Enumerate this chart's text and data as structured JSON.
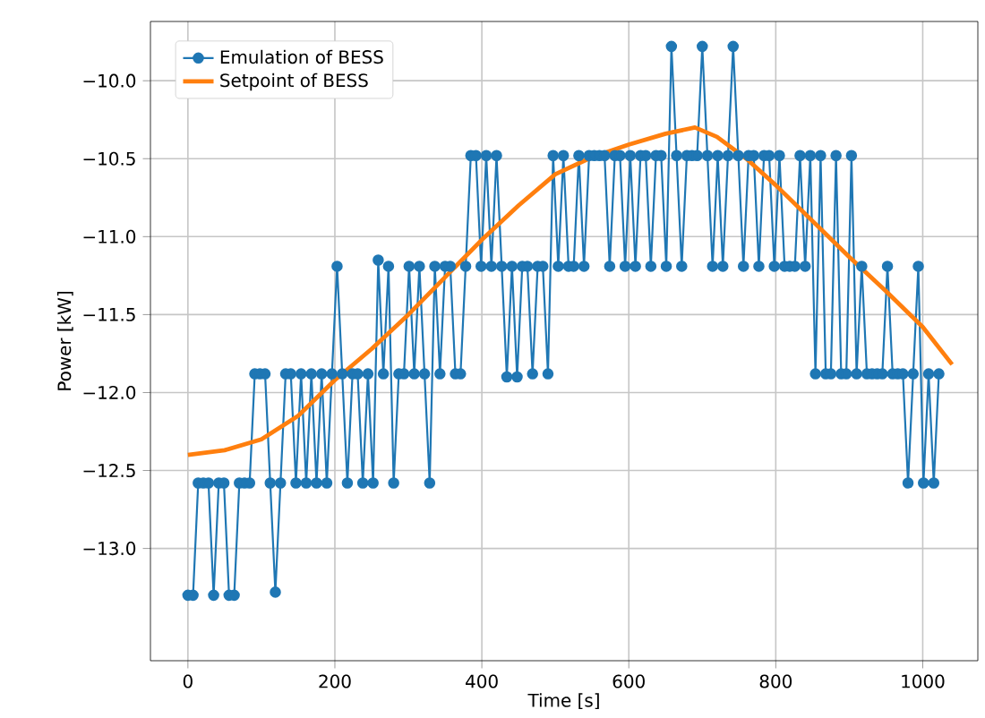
{
  "chart_data": {
    "type": "line",
    "xlabel": "Time [s]",
    "ylabel": "Power [kW]",
    "xlim": [
      -51,
      1075
    ],
    "ylim": [
      -13.72,
      -9.62
    ],
    "xticks": [
      0,
      200,
      400,
      600,
      800,
      1000
    ],
    "yticks": [
      {
        "value": -13.0,
        "label": "−13.0"
      },
      {
        "value": -12.5,
        "label": "−12.5"
      },
      {
        "value": -12.0,
        "label": "−12.0"
      },
      {
        "value": -11.5,
        "label": "−11.5"
      },
      {
        "value": -11.0,
        "label": "−11.0"
      },
      {
        "value": -10.5,
        "label": "−10.5"
      },
      {
        "value": -10.0,
        "label": "−10.0"
      }
    ],
    "grid": true,
    "legend": "top left",
    "series": [
      {
        "name": "Emulation of BESS",
        "color": "#1f77b4",
        "marker": "circle",
        "x": [
          0,
          7,
          14,
          21,
          28,
          35,
          42,
          49,
          56,
          63,
          70,
          77,
          84,
          91,
          98,
          105,
          112,
          119,
          126,
          133,
          140,
          147,
          154,
          161,
          168,
          175,
          182,
          189,
          196,
          203,
          210,
          217,
          224,
          231,
          238,
          245,
          252,
          259,
          266,
          273,
          280,
          287,
          294,
          301,
          308,
          315,
          322,
          329,
          336,
          343,
          350,
          357,
          364,
          371,
          378,
          385,
          392,
          399,
          406,
          413,
          420,
          427,
          434,
          441,
          448,
          455,
          462,
          469,
          476,
          483,
          490,
          497,
          504,
          511,
          518,
          525,
          532,
          539,
          546,
          553,
          560,
          567,
          574,
          581,
          588,
          595,
          602,
          609,
          616,
          623,
          630,
          637,
          644,
          651,
          658,
          665,
          672,
          679,
          686,
          693,
          700,
          707,
          714,
          721,
          728,
          735,
          742,
          749,
          756,
          763,
          770,
          777,
          784,
          791,
          798,
          805,
          812,
          819,
          826,
          833,
          840,
          847,
          854,
          861,
          868,
          875,
          882,
          889,
          896,
          903,
          910,
          917,
          924,
          931,
          938,
          945,
          952,
          959,
          966,
          973,
          980,
          987,
          994,
          1001,
          1008,
          1015,
          1022
        ],
        "values": [
          -13.3,
          -13.3,
          -12.58,
          -12.58,
          -12.58,
          -13.3,
          -12.58,
          -12.58,
          -13.3,
          -13.3,
          -12.58,
          -12.58,
          -12.58,
          -11.88,
          -11.88,
          -11.88,
          -12.58,
          -13.28,
          -12.58,
          -11.88,
          -11.88,
          -12.58,
          -11.88,
          -12.58,
          -11.88,
          -12.58,
          -11.88,
          -12.58,
          -11.88,
          -11.19,
          -11.88,
          -12.58,
          -11.88,
          -11.88,
          -12.58,
          -11.88,
          -12.58,
          -11.15,
          -11.88,
          -11.19,
          -12.58,
          -11.88,
          -11.88,
          -11.19,
          -11.88,
          -11.19,
          -11.88,
          -12.58,
          -11.19,
          -11.88,
          -11.19,
          -11.19,
          -11.88,
          -11.88,
          -11.19,
          -10.48,
          -10.48,
          -11.19,
          -10.48,
          -11.19,
          -10.48,
          -11.19,
          -11.9,
          -11.19,
          -11.9,
          -11.19,
          -11.19,
          -11.88,
          -11.19,
          -11.19,
          -11.88,
          -10.48,
          -11.19,
          -10.48,
          -11.19,
          -11.19,
          -10.48,
          -11.19,
          -10.48,
          -10.48,
          -10.48,
          -10.48,
          -11.19,
          -10.48,
          -10.48,
          -11.19,
          -10.48,
          -11.19,
          -10.48,
          -10.48,
          -11.19,
          -10.48,
          -10.48,
          -11.19,
          -9.78,
          -10.48,
          -11.19,
          -10.48,
          -10.48,
          -10.48,
          -9.78,
          -10.48,
          -11.19,
          -10.48,
          -11.19,
          -10.48,
          -9.78,
          -10.48,
          -11.19,
          -10.48,
          -10.48,
          -11.19,
          -10.48,
          -10.48,
          -11.19,
          -10.48,
          -11.19,
          -11.19,
          -11.19,
          -10.48,
          -11.19,
          -10.48,
          -11.88,
          -10.48,
          -11.88,
          -11.88,
          -10.48,
          -11.88,
          -11.88,
          -10.48,
          -11.88,
          -11.19,
          -11.88,
          -11.88,
          -11.88,
          -11.88,
          -11.19,
          -11.88,
          -11.88,
          -11.88,
          -12.58,
          -11.88,
          -11.19,
          -12.58,
          -11.88,
          -12.58,
          -11.88
        ]
      },
      {
        "name": "Setpoint of BESS",
        "color": "#ff7f0e",
        "marker": "none",
        "x": [
          0,
          50,
          100,
          150,
          200,
          250,
          300,
          350,
          400,
          450,
          500,
          550,
          600,
          650,
          690,
          720,
          760,
          800,
          850,
          900,
          950,
          1000,
          1040
        ],
        "values": [
          -12.4,
          -12.37,
          -12.3,
          -12.15,
          -11.92,
          -11.72,
          -11.5,
          -11.26,
          -11.02,
          -10.8,
          -10.6,
          -10.49,
          -10.41,
          -10.34,
          -10.3,
          -10.36,
          -10.5,
          -10.67,
          -10.9,
          -11.13,
          -11.35,
          -11.58,
          -11.82
        ]
      }
    ]
  }
}
